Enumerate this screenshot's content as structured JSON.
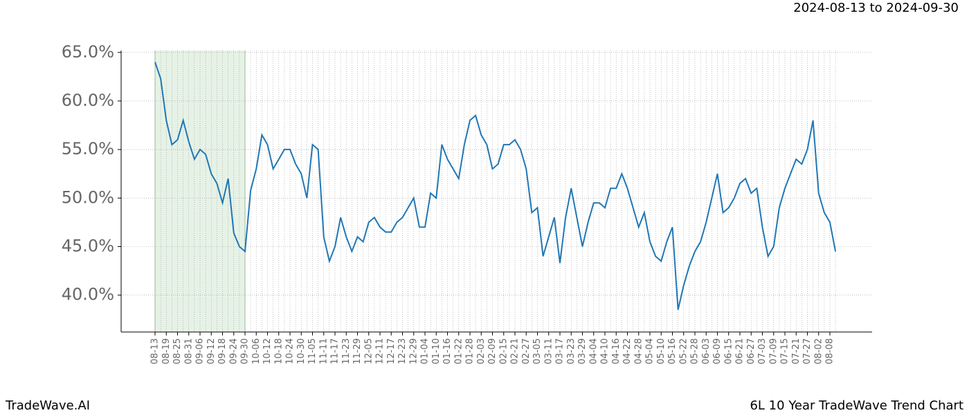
{
  "chart_data": {
    "type": "line",
    "title": "2024-08-13 to 2024-09-30",
    "footer_left": "TradeWave.AI",
    "footer_right": "6L 10 Year TradeWave Trend Chart",
    "categories": [
      "08-13",
      null,
      "08-19",
      null,
      "08-25",
      null,
      "08-31",
      null,
      "09-06",
      null,
      "09-12",
      null,
      "09-18",
      null,
      "09-24",
      null,
      "09-30",
      null,
      "10-06",
      null,
      "10-12",
      null,
      "10-18",
      null,
      "10-24",
      null,
      "10-30",
      null,
      "11-05",
      null,
      "11-11",
      null,
      "11-17",
      null,
      "11-23",
      null,
      "11-29",
      null,
      "12-05",
      null,
      "12-11",
      null,
      "12-17",
      null,
      "12-23",
      null,
      "12-29",
      null,
      "01-04",
      null,
      "01-10",
      null,
      "01-16",
      null,
      "01-22",
      null,
      "01-28",
      null,
      "02-03",
      null,
      "02-09",
      null,
      "02-15",
      null,
      "02-21",
      null,
      "02-27",
      null,
      "03-05",
      null,
      "03-11",
      null,
      "03-17",
      null,
      "03-23",
      null,
      "03-29",
      null,
      "04-04",
      null,
      "04-10",
      null,
      "04-16",
      null,
      "04-22",
      null,
      "04-28",
      null,
      "05-04",
      null,
      "05-10",
      null,
      "05-16",
      null,
      "05-22",
      null,
      "05-28",
      null,
      "06-03",
      null,
      "06-09",
      null,
      "06-15",
      null,
      "06-21",
      null,
      "06-27",
      null,
      "07-03",
      null,
      "07-09",
      null,
      "07-15",
      null,
      "07-21",
      null,
      "07-27",
      null,
      "08-02",
      null,
      "08-08",
      null
    ],
    "series": [
      {
        "color": "#1f77b4",
        "values": [
          64.0,
          62.3,
          58.0,
          55.5,
          56.0,
          58.0,
          55.8,
          54.0,
          55.0,
          54.5,
          52.5,
          51.5,
          49.5,
          52.0,
          46.4,
          45.0,
          44.5,
          50.8,
          53.0,
          56.5,
          55.5,
          53.0,
          54.0,
          55.0,
          55.0,
          53.5,
          52.5,
          50.0,
          55.5,
          55.0,
          46.0,
          43.5,
          45.0,
          48.0,
          46.0,
          44.5,
          46.0,
          45.5,
          47.5,
          48.0,
          47.0,
          46.5,
          46.5,
          47.5,
          48.0,
          49.0,
          50.0,
          47.0,
          47.0,
          50.5,
          50.0,
          55.5,
          54.0,
          53.0,
          52.0,
          55.5,
          58.0,
          58.5,
          56.5,
          55.5,
          53.0,
          53.5,
          55.5,
          55.5,
          56.0,
          55.0,
          53.0,
          48.5,
          49.0,
          44.0,
          46.0,
          48.0,
          43.3,
          48.0,
          51.0,
          48.0,
          45.0,
          47.5,
          49.5,
          49.5,
          49.0,
          51.0,
          51.0,
          52.5,
          51.0,
          49.0,
          47.0,
          48.5,
          45.5,
          44.0,
          43.5,
          45.5,
          47.0,
          38.5,
          41.0,
          43.0,
          44.5,
          45.5,
          47.5,
          50.0,
          52.5,
          48.5,
          49.0,
          50.0,
          51.5,
          52.0,
          50.5,
          51.0,
          47.0,
          44.0,
          45.0,
          49.0,
          51.0,
          52.5,
          54.0,
          53.5,
          55.0,
          58.0,
          50.5,
          48.5,
          47.5,
          44.5
        ]
      }
    ],
    "highlight": [
      "08-13",
      "09-30"
    ],
    "highlight_color": "#e6f2e6",
    "ylim": [
      36.2,
      65.2
    ],
    "yticks": [
      {
        "value": 40,
        "label": "40.0%"
      },
      {
        "value": 45,
        "label": "45.0%"
      },
      {
        "value": 50,
        "label": "50.0%"
      },
      {
        "value": 55,
        "label": "55.0%"
      },
      {
        "value": 60,
        "label": "60.0%"
      },
      {
        "value": 65,
        "label": "65.0%"
      }
    ],
    "grid": true
  }
}
